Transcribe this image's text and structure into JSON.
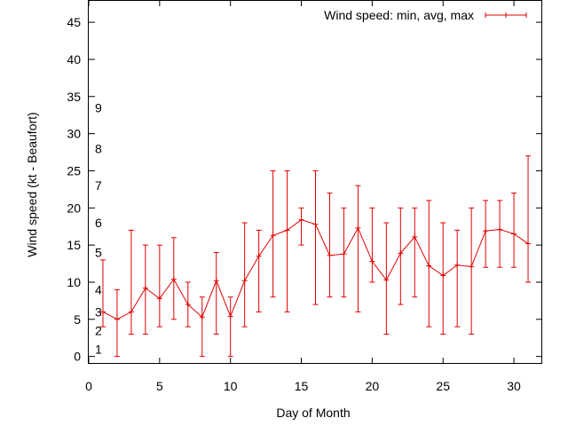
{
  "chart_data": {
    "type": "line",
    "title": "",
    "xlabel": "Day of Month",
    "ylabel": "Wind speed (kt - Beaufort)",
    "xlim": [
      0,
      32
    ],
    "ylim": [
      -1,
      48
    ],
    "xticks": [
      0,
      5,
      10,
      15,
      20,
      25,
      30
    ],
    "yticks": [
      0,
      5,
      10,
      15,
      20,
      25,
      30,
      35,
      40,
      45
    ],
    "grid": false,
    "legend_position": "top-right",
    "color": "#e00000",
    "series": [
      {
        "name": "Wind speed: min, avg, max",
        "x": [
          1,
          2,
          3,
          4,
          5,
          6,
          7,
          8,
          9,
          10,
          11,
          12,
          13,
          14,
          15,
          16,
          17,
          18,
          19,
          20,
          21,
          22,
          23,
          24,
          25,
          26,
          27,
          28,
          29,
          30,
          31
        ],
        "avg": [
          6.0,
          5.0,
          6.0,
          9.2,
          7.8,
          10.4,
          7.0,
          5.3,
          10.2,
          5.4,
          10.2,
          13.5,
          16.3,
          17.0,
          18.4,
          17.8,
          13.6,
          13.8,
          17.3,
          12.8,
          10.3,
          13.9,
          16.1,
          12.2,
          10.9,
          12.3,
          12.1,
          16.9,
          17.1,
          16.5,
          15.2
        ],
        "min": [
          4,
          0,
          3,
          3,
          4,
          5,
          4,
          0,
          3,
          0,
          4,
          6,
          8,
          6,
          15,
          7,
          8,
          8,
          6,
          10,
          3,
          7,
          8,
          4,
          3,
          4,
          3,
          12,
          12,
          12,
          10
        ],
        "max": [
          13,
          9,
          17,
          15,
          15,
          16,
          10,
          8,
          14,
          8,
          18,
          17,
          25,
          25,
          20,
          25,
          22,
          20,
          23,
          20,
          18,
          20,
          20,
          21,
          18,
          17,
          20,
          21,
          21,
          22,
          27
        ]
      }
    ],
    "beaufort_labels": [
      {
        "label": "1",
        "y": 1
      },
      {
        "label": "2",
        "y": 3.5
      },
      {
        "label": "3",
        "y": 6
      },
      {
        "label": "4",
        "y": 9
      },
      {
        "label": "5",
        "y": 14
      },
      {
        "label": "6",
        "y": 18
      },
      {
        "label": "7",
        "y": 23
      },
      {
        "label": "8",
        "y": 28
      },
      {
        "label": "9",
        "y": 33.5
      }
    ]
  }
}
